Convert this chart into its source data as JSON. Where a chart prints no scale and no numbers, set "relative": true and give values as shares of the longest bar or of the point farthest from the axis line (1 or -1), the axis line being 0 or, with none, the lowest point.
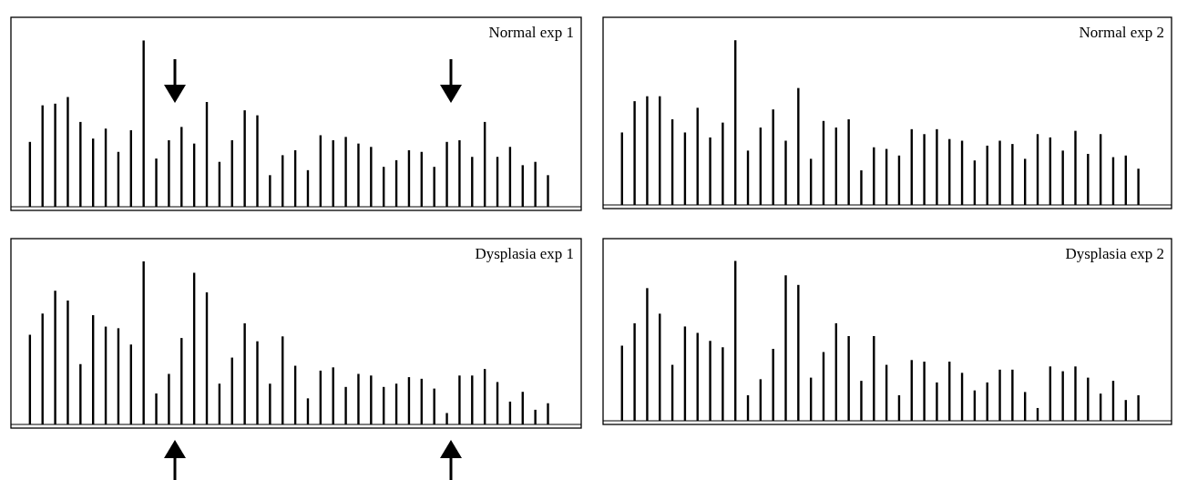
{
  "chart_data": [
    {
      "type": "bar",
      "title": "Normal exp 1",
      "relative": true,
      "categories": [
        null,
        null,
        null,
        null,
        null,
        null,
        null,
        null,
        null,
        null,
        null,
        null,
        null,
        null,
        null,
        null,
        null,
        null,
        null,
        null,
        null,
        null,
        null,
        null,
        null,
        null,
        null,
        null,
        null,
        null,
        null,
        null,
        null,
        null,
        null,
        null,
        null,
        null,
        null,
        null,
        null,
        null
      ],
      "series": [
        {
          "color": "#000000",
          "values": [
            0.39,
            0.61,
            0.62,
            0.66,
            0.51,
            0.41,
            0.47,
            0.33,
            0.46,
            1,
            0.29,
            0.4,
            0.48,
            0.38,
            0.63,
            0.27,
            0.4,
            0.58,
            0.55,
            0.19,
            0.31,
            0.34,
            0.22,
            0.43,
            0.4,
            0.42,
            0.38,
            0.36,
            0.24,
            0.28,
            0.34,
            0.33,
            0.24,
            0.39,
            0.4,
            0.3,
            0.51,
            0.3,
            0.36,
            0.25,
            0.27,
            0.19
          ]
        }
      ]
    },
    {
      "type": "bar",
      "title": "Normal exp 2",
      "relative": true,
      "categories": [
        null,
        null,
        null,
        null,
        null,
        null,
        null,
        null,
        null,
        null,
        null,
        null,
        null,
        null,
        null,
        null,
        null,
        null,
        null,
        null,
        null,
        null,
        null,
        null,
        null,
        null,
        null,
        null,
        null,
        null,
        null,
        null,
        null,
        null,
        null,
        null,
        null,
        null,
        null,
        null,
        null,
        null
      ],
      "series": [
        {
          "color": "#000000",
          "values": [
            0.44,
            0.63,
            0.66,
            0.66,
            0.52,
            0.44,
            0.59,
            0.41,
            0.5,
            1,
            0.33,
            0.47,
            0.58,
            0.39,
            0.71,
            0.28,
            0.51,
            0.47,
            0.52,
            0.21,
            0.35,
            0.34,
            0.3,
            0.46,
            0.43,
            0.46,
            0.4,
            0.39,
            0.27,
            0.36,
            0.39,
            0.37,
            0.28,
            0.43,
            0.41,
            0.33,
            0.45,
            0.31,
            0.43,
            0.29,
            0.3,
            0.22
          ]
        }
      ]
    },
    {
      "type": "bar",
      "title": "Dysplasia exp 1",
      "relative": true,
      "categories": [
        null,
        null,
        null,
        null,
        null,
        null,
        null,
        null,
        null,
        null,
        null,
        null,
        null,
        null,
        null,
        null,
        null,
        null,
        null,
        null,
        null,
        null,
        null,
        null,
        null,
        null,
        null,
        null,
        null,
        null,
        null,
        null,
        null,
        null,
        null,
        null,
        null,
        null,
        null,
        null,
        null,
        null
      ],
      "series": [
        {
          "color": "#000000",
          "values": [
            0.55,
            0.68,
            0.82,
            0.76,
            0.37,
            0.67,
            0.6,
            0.59,
            0.49,
            1,
            0.19,
            0.31,
            0.53,
            0.93,
            0.81,
            0.25,
            0.41,
            0.62,
            0.51,
            0.25,
            0.54,
            0.36,
            0.16,
            0.33,
            0.35,
            0.23,
            0.31,
            0.3,
            0.23,
            0.25,
            0.29,
            0.28,
            0.22,
            0.07,
            0.3,
            0.3,
            0.34,
            0.26,
            0.14,
            0.2,
            0.09,
            0.13
          ]
        }
      ]
    },
    {
      "type": "bar",
      "title": "Dysplasia exp 2",
      "relative": true,
      "categories": [
        null,
        null,
        null,
        null,
        null,
        null,
        null,
        null,
        null,
        null,
        null,
        null,
        null,
        null,
        null,
        null,
        null,
        null,
        null,
        null,
        null,
        null,
        null,
        null,
        null,
        null,
        null,
        null,
        null,
        null,
        null,
        null,
        null,
        null,
        null,
        null,
        null,
        null,
        null,
        null,
        null,
        null
      ],
      "series": [
        {
          "color": "#000000",
          "values": [
            0.47,
            0.61,
            0.83,
            0.67,
            0.35,
            0.59,
            0.55,
            0.5,
            0.46,
            1,
            0.16,
            0.26,
            0.45,
            0.91,
            0.85,
            0.27,
            0.43,
            0.61,
            0.53,
            0.25,
            0.53,
            0.35,
            0.16,
            0.38,
            0.37,
            0.24,
            0.37,
            0.3,
            0.19,
            0.24,
            0.32,
            0.32,
            0.18,
            0.08,
            0.34,
            0.31,
            0.34,
            0.27,
            0.17,
            0.25,
            0.13,
            0.16
          ]
        }
      ]
    }
  ]
}
